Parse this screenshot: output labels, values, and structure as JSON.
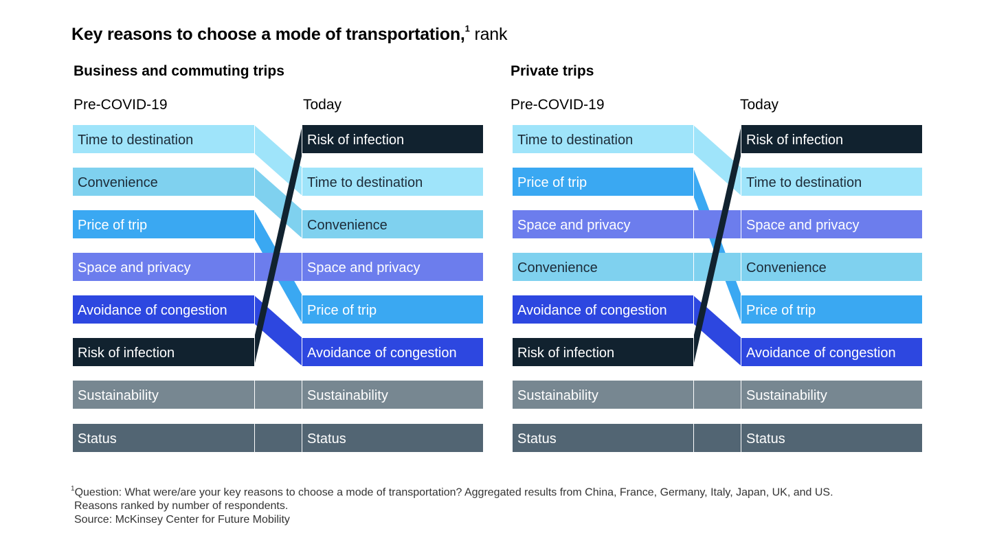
{
  "title": {
    "text": "Key reasons to choose a mode of transportation,",
    "footnote_marker": "1",
    "unit": "rank"
  },
  "colors": {
    "Time to destination": "#9fe4fa",
    "Convenience": "#7fd1ef",
    "Price of trip": "#3aa8f2",
    "Space and privacy": "#6c7ded",
    "Avoidance of congestion": "#2d47e0",
    "Risk of infection": "#11222f",
    "Sustainability": "#778791",
    "Status": "#526573"
  },
  "light_text_items": [
    "Price of trip",
    "Space and privacy",
    "Avoidance of congestion",
    "Risk of infection",
    "Sustainability",
    "Status"
  ],
  "chart_data": [
    {
      "type": "slope-rank",
      "title": "Business and commuting trips",
      "left_label": "Pre-COVID-19",
      "right_label": "Today",
      "pre_covid": [
        "Time to destination",
        "Convenience",
        "Price of trip",
        "Space and privacy",
        "Avoidance of congestion",
        "Risk of infection",
        "Sustainability",
        "Status"
      ],
      "today": [
        "Risk of infection",
        "Time to destination",
        "Convenience",
        "Space and privacy",
        "Price of trip",
        "Avoidance of congestion",
        "Sustainability",
        "Status"
      ]
    },
    {
      "type": "slope-rank",
      "title": "Private trips",
      "left_label": "Pre-COVID-19",
      "right_label": "Today",
      "pre_covid": [
        "Time to destination",
        "Price of trip",
        "Space and privacy",
        "Convenience",
        "Avoidance of congestion",
        "Risk of infection",
        "Sustainability",
        "Status"
      ],
      "today": [
        "Risk of infection",
        "Time to destination",
        "Space and privacy",
        "Convenience",
        "Price of trip",
        "Avoidance of congestion",
        "Sustainability",
        "Status"
      ]
    }
  ],
  "footnote": {
    "marker": "1",
    "lines": [
      "Question: What were/are your key reasons to choose a mode of transportation? Aggregated results from China, France, Germany, Italy, Japan, UK, and US.",
      "Reasons ranked by number of respondents.",
      "Source: McKinsey Center for Future Mobility"
    ]
  }
}
